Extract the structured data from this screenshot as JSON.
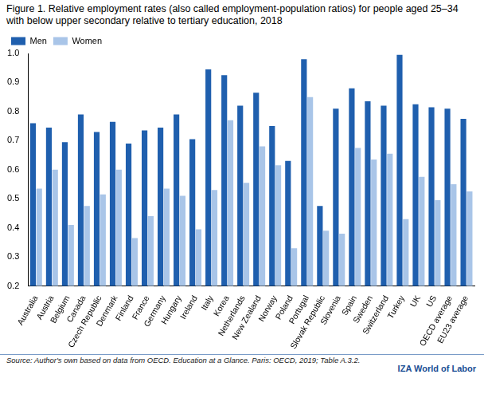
{
  "chart_data": {
    "type": "bar",
    "title": "Figure 1. Relative employment rates (also called employment-population ratios) for people aged 25–34 with below upper secondary relative to tertiary education, 2018",
    "source": "Source: Author's own based on data from OECD. Education at a Glance. Paris: OECD, 2019; Table A.3.2.",
    "logo": "IZA World of Labor",
    "categories": [
      "Australia",
      "Austria",
      "Belgium",
      "Canada",
      "Czech Republic",
      "Denmark",
      "Finland",
      "France",
      "Germany",
      "Hungary",
      "Ireland",
      "Italy",
      "Korea",
      "Netherlands",
      "New Zealand",
      "Norway",
      "Poland",
      "Portugal",
      "Slovak Republic",
      "Slovenia",
      "Spain",
      "Sweden",
      "Switzerland",
      "Turkey",
      "UK",
      "US",
      "OECD average",
      "EU23 average"
    ],
    "series": [
      {
        "name": "Men",
        "color": "#1f5fae",
        "values": [
          0.76,
          0.745,
          0.695,
          0.79,
          0.73,
          0.765,
          0.69,
          0.735,
          0.745,
          0.79,
          0.705,
          0.945,
          0.925,
          0.82,
          0.865,
          0.75,
          0.63,
          0.98,
          0.475,
          0.81,
          0.88,
          0.835,
          0.82,
          0.995,
          0.825,
          0.815,
          0.81,
          0.775
        ]
      },
      {
        "name": "Women",
        "color": "#a9c5e8",
        "values": [
          0.535,
          0.6,
          0.41,
          0.475,
          0.515,
          0.6,
          0.365,
          0.44,
          0.535,
          0.51,
          0.395,
          0.53,
          0.77,
          0.555,
          0.68,
          0.615,
          0.33,
          0.85,
          0.39,
          0.38,
          0.675,
          0.635,
          0.655,
          0.43,
          0.575,
          0.495,
          0.55,
          0.525
        ]
      }
    ],
    "ylim": [
      0.2,
      1
    ],
    "yticks": [
      0.2,
      0.3,
      0.4,
      0.5,
      0.6,
      0.7,
      0.8,
      0.9,
      {
        "value": 1,
        "label": "1.0"
      }
    ],
    "grid": false,
    "legend": "top-left"
  }
}
